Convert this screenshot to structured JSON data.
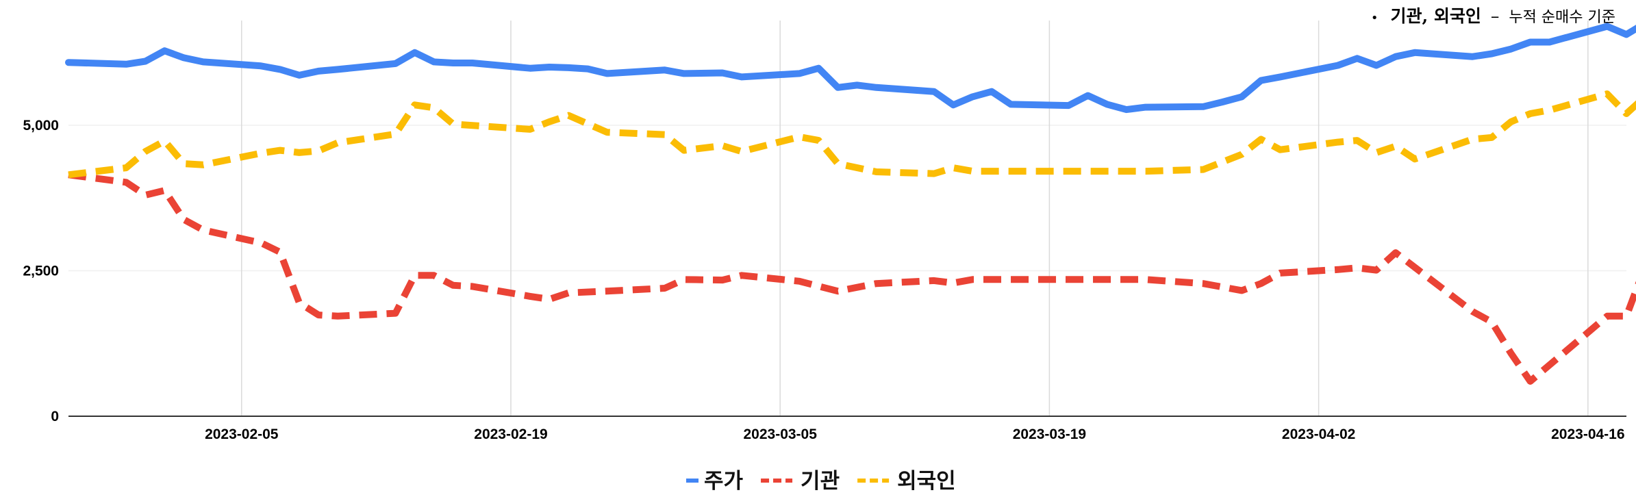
{
  "annotation": {
    "bullet": "•",
    "emphasis": "기관, 외국인",
    "separator": "–",
    "detail": "누적 순매수 기준"
  },
  "chart_data": {
    "type": "line",
    "title": "",
    "xlabel": "",
    "ylabel": "",
    "x_tick_labels": [
      "2023-02-05",
      "2023-02-19",
      "2023-03-05",
      "2023-03-19",
      "2023-04-02",
      "2023-04-16"
    ],
    "y_tick_labels": [
      "0",
      "2,500",
      "5,000"
    ],
    "ylim": [
      0,
      6800
    ],
    "x_range": [
      "2023-01-27",
      "2023-04-18"
    ],
    "grid": "vertical and horizontal, light gray",
    "legend_position": "bottom-center",
    "series": [
      {
        "name": "주가",
        "color": "#4285f4",
        "style": "solid",
        "points": [
          [
            "2023-01-27",
            6080
          ],
          [
            "2023-01-30",
            6050
          ],
          [
            "2023-01-31",
            6100
          ],
          [
            "2023-02-01",
            6280
          ],
          [
            "2023-02-02",
            6160
          ],
          [
            "2023-02-03",
            6090
          ],
          [
            "2023-02-06",
            6020
          ],
          [
            "2023-02-07",
            5960
          ],
          [
            "2023-02-08",
            5860
          ],
          [
            "2023-02-09",
            5930
          ],
          [
            "2023-02-10",
            5960
          ],
          [
            "2023-02-13",
            6060
          ],
          [
            "2023-02-14",
            6250
          ],
          [
            "2023-02-15",
            6090
          ],
          [
            "2023-02-16",
            6070
          ],
          [
            "2023-02-17",
            6070
          ],
          [
            "2023-02-20",
            5980
          ],
          [
            "2023-02-21",
            6000
          ],
          [
            "2023-02-22",
            5990
          ],
          [
            "2023-02-23",
            5970
          ],
          [
            "2023-02-24",
            5890
          ],
          [
            "2023-02-27",
            5950
          ],
          [
            "2023-02-28",
            5890
          ],
          [
            "2023-03-02",
            5900
          ],
          [
            "2023-03-03",
            5830
          ],
          [
            "2023-03-06",
            5890
          ],
          [
            "2023-03-07",
            5980
          ],
          [
            "2023-03-08",
            5650
          ],
          [
            "2023-03-09",
            5690
          ],
          [
            "2023-03-10",
            5650
          ],
          [
            "2023-03-13",
            5580
          ],
          [
            "2023-03-14",
            5350
          ],
          [
            "2023-03-15",
            5490
          ],
          [
            "2023-03-16",
            5580
          ],
          [
            "2023-03-17",
            5360
          ],
          [
            "2023-03-20",
            5340
          ],
          [
            "2023-03-21",
            5510
          ],
          [
            "2023-03-22",
            5360
          ],
          [
            "2023-03-23",
            5270
          ],
          [
            "2023-03-24",
            5310
          ],
          [
            "2023-03-27",
            5320
          ],
          [
            "2023-03-28",
            5400
          ],
          [
            "2023-03-29",
            5490
          ],
          [
            "2023-03-30",
            5770
          ],
          [
            "2023-03-31",
            5830
          ],
          [
            "2023-04-03",
            6030
          ],
          [
            "2023-04-04",
            6150
          ],
          [
            "2023-04-05",
            6030
          ],
          [
            "2023-04-06",
            6180
          ],
          [
            "2023-04-07",
            6250
          ],
          [
            "2023-04-10",
            6180
          ],
          [
            "2023-04-11",
            6230
          ],
          [
            "2023-04-12",
            6310
          ],
          [
            "2023-04-13",
            6430
          ],
          [
            "2023-04-14",
            6430
          ],
          [
            "2023-04-17",
            6700
          ],
          [
            "2023-04-18",
            6560
          ],
          [
            "2023-04-19",
            6760
          ]
        ]
      },
      {
        "name": "기관",
        "color": "#ea4335",
        "style": "dashed",
        "points": [
          [
            "2023-01-27",
            4150
          ],
          [
            "2023-01-30",
            4020
          ],
          [
            "2023-01-31",
            3800
          ],
          [
            "2023-02-01",
            3880
          ],
          [
            "2023-02-02",
            3380
          ],
          [
            "2023-02-03",
            3200
          ],
          [
            "2023-02-06",
            2980
          ],
          [
            "2023-02-07",
            2820
          ],
          [
            "2023-02-08",
            1950
          ],
          [
            "2023-02-09",
            1740
          ],
          [
            "2023-02-10",
            1720
          ],
          [
            "2023-02-13",
            1770
          ],
          [
            "2023-02-14",
            2420
          ],
          [
            "2023-02-15",
            2420
          ],
          [
            "2023-02-16",
            2250
          ],
          [
            "2023-02-17",
            2230
          ],
          [
            "2023-02-20",
            2060
          ],
          [
            "2023-02-21",
            2010
          ],
          [
            "2023-02-22",
            2120
          ],
          [
            "2023-02-24",
            2150
          ],
          [
            "2023-02-27",
            2200
          ],
          [
            "2023-02-28",
            2350
          ],
          [
            "2023-03-02",
            2340
          ],
          [
            "2023-03-03",
            2420
          ],
          [
            "2023-03-06",
            2320
          ],
          [
            "2023-03-08",
            2150
          ],
          [
            "2023-03-10",
            2280
          ],
          [
            "2023-03-13",
            2330
          ],
          [
            "2023-03-14",
            2290
          ],
          [
            "2023-03-15",
            2350
          ],
          [
            "2023-03-20",
            2350
          ],
          [
            "2023-03-24",
            2350
          ],
          [
            "2023-03-27",
            2280
          ],
          [
            "2023-03-29",
            2160
          ],
          [
            "2023-03-30",
            2280
          ],
          [
            "2023-03-31",
            2460
          ],
          [
            "2023-04-03",
            2520
          ],
          [
            "2023-04-04",
            2550
          ],
          [
            "2023-04-05",
            2510
          ],
          [
            "2023-04-06",
            2810
          ],
          [
            "2023-04-10",
            1800
          ],
          [
            "2023-04-11",
            1620
          ],
          [
            "2023-04-12",
            1080
          ],
          [
            "2023-04-13",
            600
          ],
          [
            "2023-04-17",
            1720
          ],
          [
            "2023-04-18",
            1720
          ],
          [
            "2023-04-19",
            2600
          ]
        ]
      },
      {
        "name": "외국인",
        "color": "#fbbc04",
        "style": "dashed",
        "points": [
          [
            "2023-01-27",
            4150
          ],
          [
            "2023-01-30",
            4270
          ],
          [
            "2023-01-31",
            4550
          ],
          [
            "2023-02-01",
            4730
          ],
          [
            "2023-02-02",
            4340
          ],
          [
            "2023-02-03",
            4320
          ],
          [
            "2023-02-06",
            4520
          ],
          [
            "2023-02-07",
            4570
          ],
          [
            "2023-02-08",
            4530
          ],
          [
            "2023-02-09",
            4560
          ],
          [
            "2023-02-10",
            4700
          ],
          [
            "2023-02-13",
            4850
          ],
          [
            "2023-02-14",
            5350
          ],
          [
            "2023-02-15",
            5300
          ],
          [
            "2023-02-16",
            5020
          ],
          [
            "2023-02-20",
            4930
          ],
          [
            "2023-02-21",
            5060
          ],
          [
            "2023-02-22",
            5170
          ],
          [
            "2023-02-24",
            4880
          ],
          [
            "2023-02-27",
            4840
          ],
          [
            "2023-02-28",
            4570
          ],
          [
            "2023-03-02",
            4650
          ],
          [
            "2023-03-03",
            4550
          ],
          [
            "2023-03-06",
            4800
          ],
          [
            "2023-03-07",
            4740
          ],
          [
            "2023-03-08",
            4340
          ],
          [
            "2023-03-10",
            4200
          ],
          [
            "2023-03-13",
            4170
          ],
          [
            "2023-03-14",
            4270
          ],
          [
            "2023-03-15",
            4210
          ],
          [
            "2023-03-20",
            4210
          ],
          [
            "2023-03-24",
            4210
          ],
          [
            "2023-03-27",
            4240
          ],
          [
            "2023-03-29",
            4500
          ],
          [
            "2023-03-30",
            4760
          ],
          [
            "2023-03-31",
            4580
          ],
          [
            "2023-04-03",
            4710
          ],
          [
            "2023-04-04",
            4740
          ],
          [
            "2023-04-05",
            4530
          ],
          [
            "2023-04-06",
            4640
          ],
          [
            "2023-04-07",
            4420
          ],
          [
            "2023-04-10",
            4760
          ],
          [
            "2023-04-11",
            4790
          ],
          [
            "2023-04-12",
            5060
          ],
          [
            "2023-04-13",
            5200
          ],
          [
            "2023-04-14",
            5260
          ],
          [
            "2023-04-17",
            5540
          ],
          [
            "2023-04-18",
            5200
          ],
          [
            "2023-04-19",
            5500
          ]
        ]
      }
    ]
  }
}
